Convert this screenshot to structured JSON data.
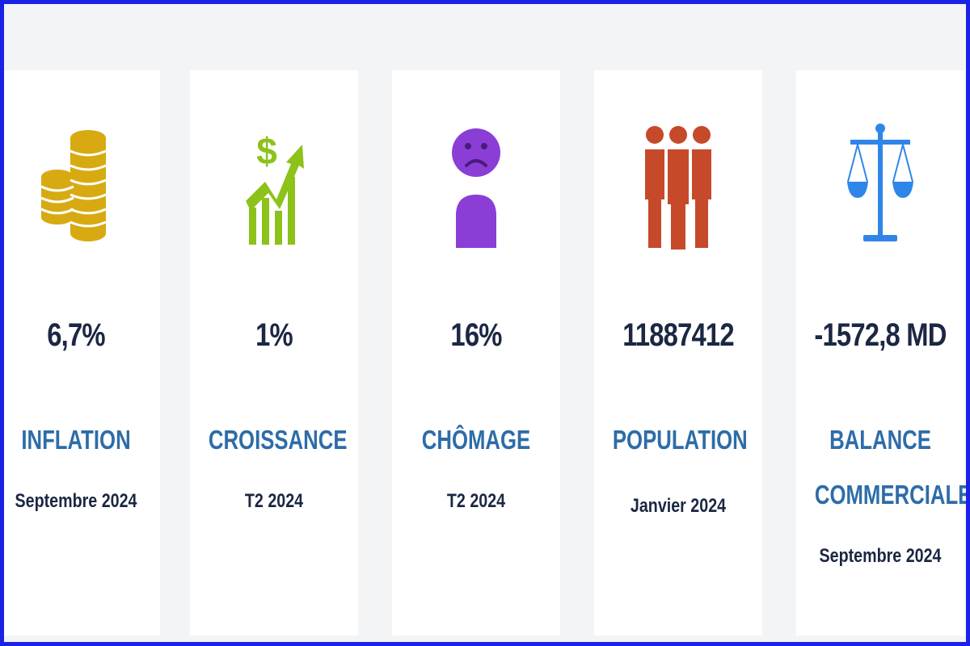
{
  "colors": {
    "border": "#1a22e6",
    "background": "#f3f4f6",
    "card": "#ffffff",
    "value_text": "#1b2743",
    "label_text": "#2e6ca8",
    "inflation_icon": "#d7aa12",
    "croissance_icon": "#8cc21a",
    "chomage_icon": "#8b3ed6",
    "population_icon": "#c6492a",
    "balance_icon": "#2f86e8"
  },
  "cards": [
    {
      "icon": "coins-icon",
      "value": "6,7%",
      "label": "INFLATION",
      "period": "Septembre 2024"
    },
    {
      "icon": "growth-chart-icon",
      "value": "1%",
      "label": "CROISSANCE",
      "period": "T2 2024"
    },
    {
      "icon": "sad-person-icon",
      "value": "16%",
      "label": "CHÔMAGE",
      "period": "T2 2024"
    },
    {
      "icon": "people-group-icon",
      "value": "11887412",
      "label": "POPULATION",
      "period": "Janvier 2024"
    },
    {
      "icon": "scale-balance-icon",
      "value": "-1572,8 MD",
      "label_line1": "BALANCE",
      "label_line2": "COMMERCIALE",
      "period": "Septembre 2024"
    }
  ]
}
